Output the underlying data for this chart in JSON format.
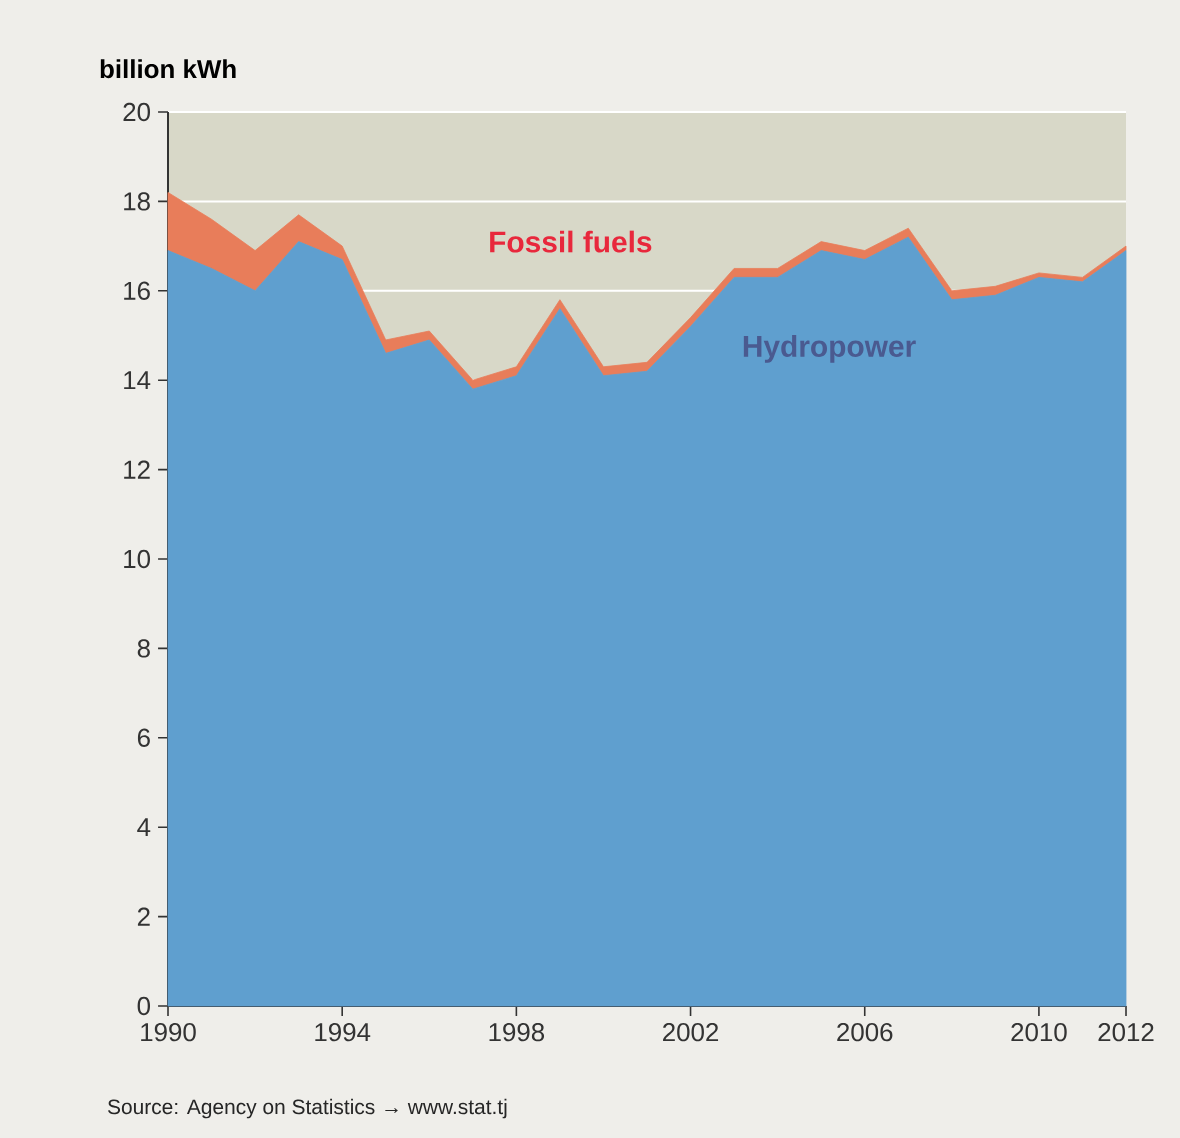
{
  "chart_data": {
    "type": "area",
    "stacked": true,
    "ylabel": "billion kWh",
    "x": [
      1990,
      1991,
      1992,
      1993,
      1994,
      1995,
      1996,
      1997,
      1998,
      1999,
      2000,
      2001,
      2002,
      2003,
      2004,
      2005,
      2006,
      2007,
      2008,
      2009,
      2010,
      2011,
      2012
    ],
    "series": [
      {
        "name": "Hydropower",
        "color": "#5f9fcf",
        "values": [
          16.9,
          16.5,
          16.0,
          17.1,
          16.7,
          14.6,
          14.9,
          13.8,
          14.1,
          15.6,
          14.1,
          14.2,
          15.2,
          16.3,
          16.3,
          16.9,
          16.7,
          17.2,
          15.8,
          15.9,
          16.3,
          16.2,
          16.9
        ]
      },
      {
        "name": "Fossil fuels",
        "color": "#e87d5a",
        "values": [
          1.3,
          1.1,
          0.9,
          0.6,
          0.3,
          0.3,
          0.2,
          0.2,
          0.2,
          0.2,
          0.2,
          0.2,
          0.2,
          0.2,
          0.2,
          0.2,
          0.2,
          0.2,
          0.2,
          0.2,
          0.1,
          0.1,
          0.1
        ]
      }
    ],
    "xlim": [
      1990,
      2012
    ],
    "xticks": [
      1990,
      1994,
      1998,
      2002,
      2006,
      2010,
      2012
    ],
    "ylim": [
      0,
      20
    ],
    "yticks": [
      0,
      2,
      4,
      6,
      8,
      10,
      12,
      14,
      16,
      18,
      20
    ],
    "grid": "y",
    "annotations": [
      "Source: Agency on Statistics → www.stat.tj"
    ]
  }
}
